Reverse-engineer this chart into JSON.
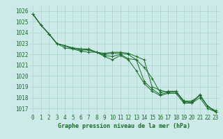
{
  "background_color": "#cceae7",
  "grid_color": "#aad4d0",
  "line_color": "#1a6b2a",
  "xlabel": "Graphe pression niveau de la mer (hPa)",
  "ylim": [
    1016.5,
    1026.5
  ],
  "xlim": [
    -0.5,
    23.5
  ],
  "yticks": [
    1017,
    1018,
    1019,
    1020,
    1021,
    1022,
    1023,
    1024,
    1025,
    1026
  ],
  "xticks": [
    0,
    1,
    2,
    3,
    4,
    5,
    6,
    7,
    8,
    9,
    10,
    11,
    12,
    13,
    14,
    15,
    16,
    17,
    18,
    19,
    20,
    21,
    22,
    23
  ],
  "series": [
    [
      1025.7,
      1024.7,
      1023.9,
      1023.0,
      1022.8,
      1022.5,
      1022.3,
      1022.2,
      1022.2,
      1021.8,
      1021.5,
      1021.9,
      1021.5,
      1020.5,
      1019.3,
      1018.6,
      1018.2,
      1018.4,
      1018.4,
      1017.5,
      1017.5,
      1018.0,
      1017.0,
      1016.7
    ],
    [
      1025.7,
      1024.7,
      1023.9,
      1023.0,
      1022.6,
      1022.5,
      1022.4,
      1022.4,
      1022.2,
      1021.9,
      1021.8,
      1022.0,
      1021.6,
      1021.5,
      1019.5,
      1018.8,
      1018.3,
      1018.5,
      1018.5,
      1017.7,
      1017.7,
      1018.2,
      1017.2,
      1016.8
    ],
    [
      1025.7,
      1024.7,
      1023.9,
      1023.0,
      1022.8,
      1022.6,
      1022.5,
      1022.4,
      1022.2,
      1022.0,
      1022.1,
      1022.1,
      1022.0,
      1021.5,
      1020.8,
      1019.8,
      1018.5,
      1018.6,
      1018.6,
      1017.6,
      1017.6,
      1018.2,
      1017.2,
      1016.7
    ],
    [
      1025.7,
      1024.7,
      1023.9,
      1023.0,
      1022.8,
      1022.6,
      1022.5,
      1022.5,
      1022.2,
      1022.1,
      1022.2,
      1022.2,
      1022.1,
      1021.8,
      1021.5,
      1019.0,
      1018.7,
      1018.5,
      1018.6,
      1017.7,
      1017.5,
      1018.3,
      1017.2,
      1016.7
    ]
  ],
  "tick_fontsize": 5.5,
  "xlabel_fontsize": 6.0
}
